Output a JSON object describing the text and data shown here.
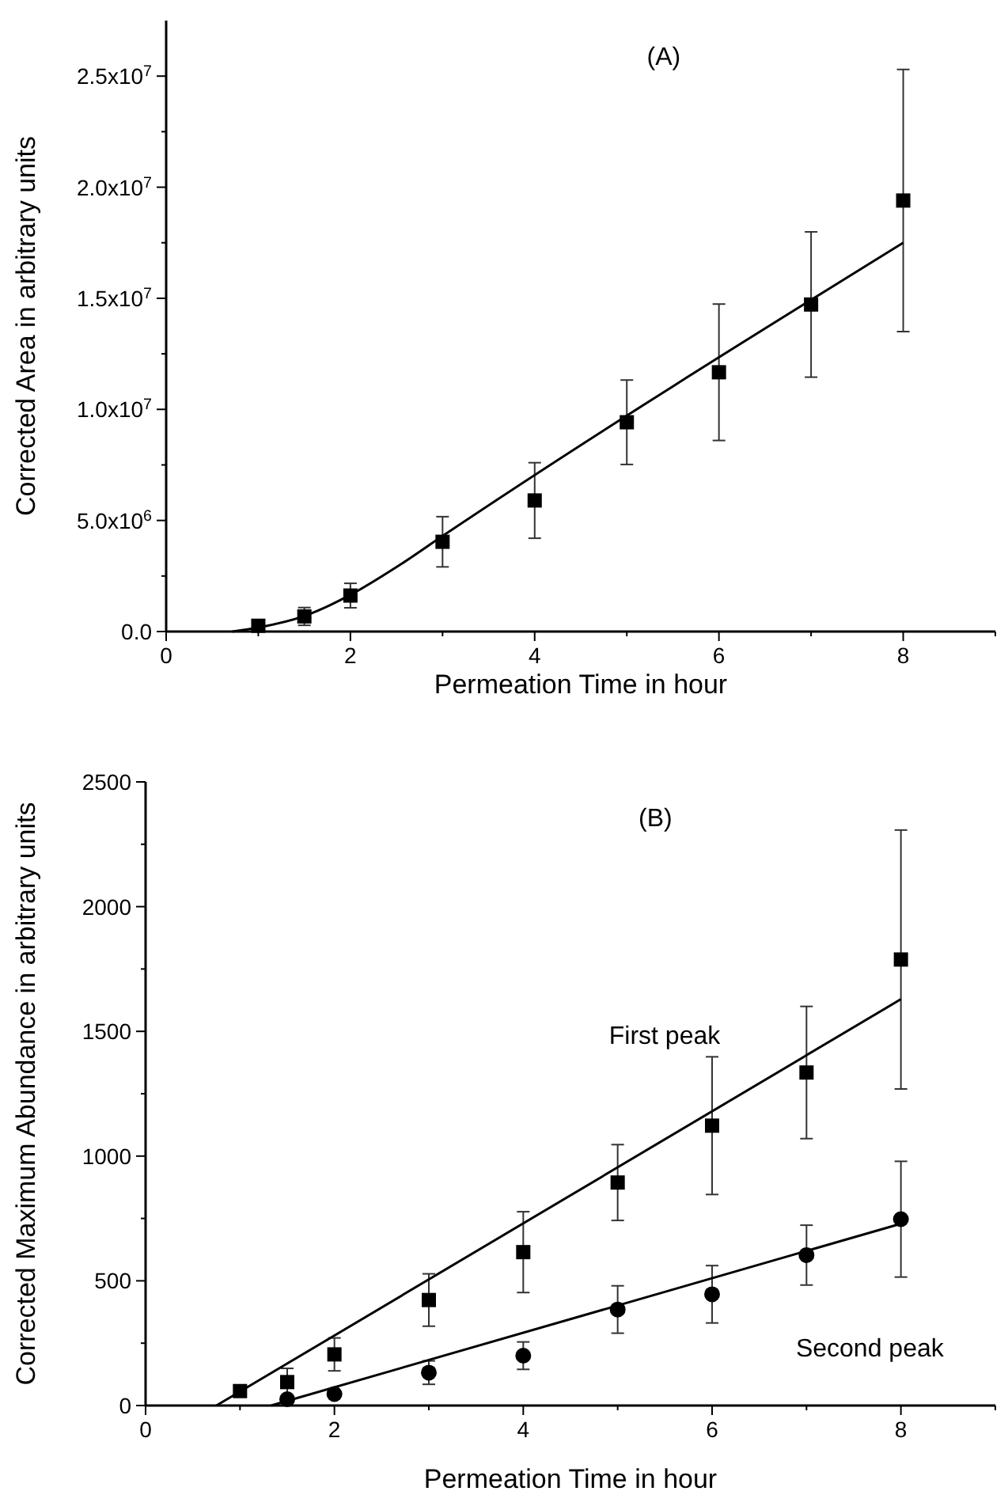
{
  "chart_data": [
    {
      "type": "scatter",
      "title": "(A)",
      "xlabel": "Permeation Time in hour",
      "ylabel": "Corrected Area in arbitrary units",
      "xlim": [
        0,
        9
      ],
      "xticks": [
        0,
        {
          "value": 1,
          "label": null
        },
        2,
        {
          "value": 3,
          "label": null
        },
        4,
        {
          "value": 5,
          "label": null
        },
        6,
        {
          "value": 7,
          "label": null
        },
        8,
        {
          "value": 9,
          "label": null
        }
      ],
      "ylim": [
        0,
        27500000
      ],
      "yticks": [
        {
          "value": 0,
          "label": "0.0"
        },
        {
          "value": 2500000,
          "label": null
        },
        {
          "value": 5000000,
          "label": "5.0x10$^{6}$"
        },
        {
          "value": 7500000,
          "label": null
        },
        {
          "value": 10000000,
          "label": "1.0x10$^{7}$"
        },
        {
          "value": 12500000,
          "label": null
        },
        {
          "value": 15000000,
          "label": "1.5x10$^{7}$"
        },
        {
          "value": 17500000,
          "label": null
        },
        {
          "value": 20000000,
          "label": "2.0x10$^{7}$"
        },
        {
          "value": 22500000,
          "label": null
        },
        {
          "value": 25000000,
          "label": "2.5x10$^{7}$"
        }
      ],
      "series": [
        {
          "type": "scatter",
          "marker": "square",
          "color": "#000000",
          "x": [
            1,
            1.5,
            2,
            3,
            4,
            5,
            6,
            7,
            8
          ],
          "values": [
            260000,
            680000,
            1620000,
            4040000,
            5900000,
            9420000,
            11670000,
            14720000,
            19400000
          ],
          "errors": [
            null,
            400000,
            550000,
            1130000,
            1700000,
            1900000,
            3070000,
            3270000,
            5900000
          ]
        },
        {
          "type": "line",
          "marker": "none",
          "color": "#000000",
          "x": [
            0.72,
            1,
            1.5,
            2,
            2.5,
            3,
            8
          ],
          "values": [
            0,
            180000,
            700000,
            1650000,
            2900000,
            4300000,
            17500000
          ]
        }
      ]
    },
    {
      "type": "scatter",
      "title": "(B)",
      "xlabel": "Permeation Time in hour",
      "ylabel": "Corrected Maximum Abundance in arbitrary units",
      "xlim": [
        0,
        9
      ],
      "xticks": [
        0,
        {
          "value": 1,
          "label": null
        },
        2,
        {
          "value": 3,
          "label": null
        },
        4,
        {
          "value": 5,
          "label": null
        },
        6,
        {
          "value": 7,
          "label": null
        },
        8,
        {
          "value": 9,
          "label": null
        }
      ],
      "ylim": [
        0,
        2500
      ],
      "yticks": [
        0,
        {
          "value": 250,
          "label": null
        },
        500,
        {
          "value": 750,
          "label": null
        },
        1000,
        {
          "value": 1250,
          "label": null
        },
        1500,
        {
          "value": 1750,
          "label": null
        },
        2000,
        {
          "value": 2250,
          "label": null
        },
        2500
      ],
      "series": [
        {
          "type": "scatter",
          "name": "First peak",
          "marker": "square",
          "color": "#000000",
          "x": [
            1,
            1.5,
            2,
            3,
            4,
            5,
            6,
            7,
            8
          ],
          "values": [
            58,
            94,
            205,
            423,
            615,
            894,
            1122,
            1335,
            1788
          ],
          "errors": [
            null,
            55,
            66,
            105,
            162,
            152,
            276,
            265,
            519
          ]
        },
        {
          "type": "line",
          "marker": "none",
          "color": "#000000",
          "x": [
            0.75,
            8
          ],
          "values": [
            0,
            1629
          ]
        },
        {
          "type": "scatter",
          "name": "Second peak",
          "marker": "circle",
          "color": "#000000",
          "x": [
            1.5,
            2,
            3,
            4,
            5,
            6,
            7,
            8
          ],
          "values": [
            25,
            46,
            132,
            200,
            385,
            446,
            603,
            747
          ],
          "errors": [
            null,
            null,
            47,
            55,
            95,
            115,
            120,
            232
          ]
        },
        {
          "type": "line",
          "marker": "none",
          "color": "#000000",
          "x": [
            1.33,
            8
          ],
          "values": [
            0,
            729
          ]
        }
      ]
    }
  ]
}
